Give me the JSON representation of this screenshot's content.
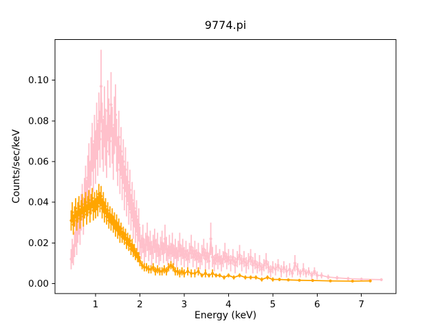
{
  "chart_data": {
    "type": "line",
    "title": "9774.pi",
    "xlabel": "Energy (keV)",
    "ylabel": "Counts/sec/keV",
    "xlim": [
      0.085,
      7.78
    ],
    "ylim": [
      -0.005,
      0.12
    ],
    "xticks": [
      1,
      2,
      3,
      4,
      5,
      6,
      7
    ],
    "xtick_labels": [
      "1",
      "2",
      "3",
      "4",
      "5",
      "6",
      "7"
    ],
    "yticks": [
      0.0,
      0.02,
      0.04,
      0.06,
      0.08,
      0.1
    ],
    "ytick_labels": [
      "0.00",
      "0.02",
      "0.04",
      "0.06",
      "0.08",
      "0.10"
    ],
    "grid": false,
    "legend": "none",
    "background_color": "#ffffff",
    "axes_color": "#000000",
    "series": [
      {
        "name": "spectrum-pink",
        "color": "#ffc0cb",
        "marker": "dot",
        "line": "solid",
        "error_bars": true,
        "x": [
          0.45,
          0.475,
          0.5,
          0.525,
          0.55,
          0.575,
          0.6,
          0.625,
          0.65,
          0.675,
          0.7,
          0.725,
          0.75,
          0.775,
          0.8,
          0.825,
          0.85,
          0.875,
          0.9,
          0.925,
          0.95,
          0.975,
          1.0,
          1.025,
          1.05,
          1.075,
          1.1,
          1.125,
          1.15,
          1.175,
          1.2,
          1.225,
          1.25,
          1.275,
          1.3,
          1.325,
          1.35,
          1.375,
          1.4,
          1.425,
          1.45,
          1.475,
          1.5,
          1.525,
          1.55,
          1.575,
          1.6,
          1.625,
          1.65,
          1.675,
          1.7,
          1.725,
          1.75,
          1.775,
          1.8,
          1.825,
          1.85,
          1.875,
          1.9,
          1.925,
          1.95,
          1.975,
          2.0,
          2.033,
          2.067,
          2.1,
          2.133,
          2.167,
          2.2,
          2.233,
          2.267,
          2.3,
          2.333,
          2.367,
          2.4,
          2.433,
          2.467,
          2.5,
          2.533,
          2.567,
          2.6,
          2.633,
          2.667,
          2.7,
          2.733,
          2.767,
          2.8,
          2.833,
          2.867,
          2.9,
          2.933,
          2.967,
          3.0,
          3.04,
          3.08,
          3.12,
          3.16,
          3.2,
          3.24,
          3.28,
          3.32,
          3.36,
          3.4,
          3.44,
          3.48,
          3.52,
          3.56,
          3.6,
          3.64,
          3.68,
          3.72,
          3.76,
          3.8,
          3.84,
          3.88,
          3.92,
          3.96,
          4.0,
          4.05,
          4.1,
          4.15,
          4.2,
          4.25,
          4.3,
          4.35,
          4.4,
          4.45,
          4.5,
          4.55,
          4.6,
          4.65,
          4.7,
          4.75,
          4.8,
          4.85,
          4.9,
          4.95,
          5.0,
          5.06,
          5.12,
          5.19,
          5.25,
          5.31,
          5.38,
          5.44,
          5.5,
          5.56,
          5.62,
          5.69,
          5.75,
          5.81,
          5.88,
          5.94,
          6.0,
          6.1,
          6.25,
          6.45,
          6.7,
          7.0,
          7.45
        ],
        "y": [
          0.012,
          0.016,
          0.014,
          0.019,
          0.025,
          0.021,
          0.028,
          0.032,
          0.027,
          0.035,
          0.04,
          0.033,
          0.042,
          0.048,
          0.041,
          0.052,
          0.058,
          0.049,
          0.06,
          0.067,
          0.057,
          0.07,
          0.062,
          0.075,
          0.066,
          0.08,
          0.071,
          0.097,
          0.075,
          0.068,
          0.082,
          0.072,
          0.065,
          0.085,
          0.077,
          0.07,
          0.088,
          0.073,
          0.064,
          0.078,
          0.083,
          0.068,
          0.06,
          0.072,
          0.056,
          0.065,
          0.052,
          0.06,
          0.047,
          0.056,
          0.043,
          0.05,
          0.039,
          0.046,
          0.035,
          0.041,
          0.031,
          0.037,
          0.028,
          0.033,
          0.024,
          0.029,
          0.021,
          0.018,
          0.022,
          0.016,
          0.019,
          0.023,
          0.017,
          0.02,
          0.015,
          0.018,
          0.021,
          0.016,
          0.019,
          0.014,
          0.017,
          0.02,
          0.015,
          0.022,
          0.017,
          0.014,
          0.018,
          0.015,
          0.019,
          0.014,
          0.017,
          0.013,
          0.016,
          0.019,
          0.014,
          0.017,
          0.013,
          0.016,
          0.012,
          0.015,
          0.018,
          0.013,
          0.016,
          0.012,
          0.015,
          0.011,
          0.014,
          0.017,
          0.012,
          0.015,
          0.011,
          0.022,
          0.013,
          0.01,
          0.014,
          0.011,
          0.013,
          0.01,
          0.012,
          0.015,
          0.011,
          0.013,
          0.01,
          0.013,
          0.009,
          0.012,
          0.014,
          0.01,
          0.012,
          0.009,
          0.011,
          0.013,
          0.009,
          0.011,
          0.008,
          0.01,
          0.007,
          0.009,
          0.011,
          0.008,
          0.006,
          0.008,
          0.007,
          0.009,
          0.006,
          0.008,
          0.006,
          0.007,
          0.005,
          0.01,
          0.007,
          0.005,
          0.007,
          0.005,
          0.006,
          0.004,
          0.006,
          0.004,
          0.004,
          0.0032,
          0.0028,
          0.0024,
          0.0021,
          0.0019
        ],
        "yerr": [
          0.005,
          0.006,
          0.005,
          0.006,
          0.007,
          0.007,
          0.008,
          0.008,
          0.008,
          0.009,
          0.009,
          0.009,
          0.01,
          0.01,
          0.01,
          0.011,
          0.011,
          0.011,
          0.012,
          0.012,
          0.012,
          0.013,
          0.013,
          0.014,
          0.013,
          0.014,
          0.014,
          0.018,
          0.014,
          0.013,
          0.015,
          0.014,
          0.013,
          0.015,
          0.014,
          0.013,
          0.016,
          0.014,
          0.013,
          0.014,
          0.015,
          0.013,
          0.012,
          0.013,
          0.012,
          0.012,
          0.011,
          0.011,
          0.011,
          0.011,
          0.01,
          0.01,
          0.01,
          0.01,
          0.009,
          0.009,
          0.009,
          0.009,
          0.008,
          0.008,
          0.008,
          0.008,
          0.007,
          0.006,
          0.007,
          0.006,
          0.006,
          0.007,
          0.006,
          0.006,
          0.006,
          0.006,
          0.006,
          0.006,
          0.006,
          0.005,
          0.006,
          0.006,
          0.005,
          0.007,
          0.006,
          0.005,
          0.006,
          0.005,
          0.006,
          0.005,
          0.005,
          0.005,
          0.005,
          0.006,
          0.005,
          0.005,
          0.005,
          0.005,
          0.005,
          0.005,
          0.006,
          0.005,
          0.005,
          0.005,
          0.005,
          0.004,
          0.005,
          0.005,
          0.005,
          0.005,
          0.004,
          0.008,
          0.005,
          0.004,
          0.005,
          0.004,
          0.004,
          0.004,
          0.004,
          0.005,
          0.004,
          0.004,
          0.004,
          0.004,
          0.004,
          0.004,
          0.005,
          0.004,
          0.004,
          0.004,
          0.004,
          0.004,
          0.004,
          0.004,
          0.003,
          0.004,
          0.003,
          0.003,
          0.004,
          0.003,
          0.003,
          0.003,
          0.003,
          0.003,
          0.003,
          0.003,
          0.003,
          0.003,
          0.002,
          0.004,
          0.003,
          0.002,
          0.003,
          0.002,
          0.002,
          0.002,
          0.002,
          0.002,
          0.0015,
          0.0012,
          0.001,
          0.0009,
          0.0008,
          0.0007
        ]
      },
      {
        "name": "spectrum-orange",
        "color": "#ffa500",
        "marker": "dot",
        "line": "solid",
        "error_bars": true,
        "x": [
          0.45,
          0.475,
          0.5,
          0.525,
          0.55,
          0.575,
          0.6,
          0.625,
          0.65,
          0.675,
          0.7,
          0.725,
          0.75,
          0.775,
          0.8,
          0.825,
          0.85,
          0.875,
          0.9,
          0.925,
          0.95,
          0.975,
          1.0,
          1.025,
          1.05,
          1.075,
          1.1,
          1.125,
          1.15,
          1.175,
          1.2,
          1.225,
          1.25,
          1.275,
          1.3,
          1.325,
          1.35,
          1.375,
          1.4,
          1.425,
          1.45,
          1.475,
          1.5,
          1.525,
          1.55,
          1.575,
          1.6,
          1.625,
          1.65,
          1.675,
          1.7,
          1.725,
          1.75,
          1.775,
          1.8,
          1.825,
          1.85,
          1.875,
          1.9,
          1.925,
          1.95,
          1.975,
          2.0,
          2.05,
          2.1,
          2.15,
          2.2,
          2.25,
          2.3,
          2.35,
          2.4,
          2.45,
          2.5,
          2.55,
          2.6,
          2.65,
          2.7,
          2.75,
          2.8,
          2.85,
          2.9,
          2.95,
          3.0,
          3.08,
          3.16,
          3.24,
          3.32,
          3.4,
          3.48,
          3.56,
          3.64,
          3.72,
          3.8,
          3.9,
          4.0,
          4.12,
          4.25,
          4.38,
          4.5,
          4.62,
          4.75,
          4.88,
          5.0,
          5.15,
          5.35,
          5.6,
          5.9,
          6.3,
          6.8,
          7.2
        ],
        "y": [
          0.031,
          0.035,
          0.029,
          0.033,
          0.037,
          0.031,
          0.035,
          0.038,
          0.032,
          0.036,
          0.039,
          0.033,
          0.037,
          0.04,
          0.034,
          0.038,
          0.041,
          0.035,
          0.039,
          0.042,
          0.036,
          0.04,
          0.037,
          0.041,
          0.038,
          0.044,
          0.04,
          0.043,
          0.037,
          0.04,
          0.035,
          0.038,
          0.033,
          0.036,
          0.031,
          0.034,
          0.03,
          0.033,
          0.029,
          0.031,
          0.027,
          0.03,
          0.026,
          0.028,
          0.024,
          0.027,
          0.023,
          0.025,
          0.022,
          0.024,
          0.02,
          0.022,
          0.019,
          0.021,
          0.017,
          0.019,
          0.016,
          0.017,
          0.014,
          0.015,
          0.013,
          0.013,
          0.011,
          0.009,
          0.008,
          0.008,
          0.007,
          0.007,
          0.008,
          0.006,
          0.007,
          0.006,
          0.006,
          0.007,
          0.006,
          0.008,
          0.009,
          0.008,
          0.006,
          0.006,
          0.005,
          0.006,
          0.005,
          0.006,
          0.005,
          0.005,
          0.006,
          0.004,
          0.005,
          0.004,
          0.005,
          0.004,
          0.004,
          0.003,
          0.004,
          0.003,
          0.004,
          0.003,
          0.003,
          0.003,
          0.002,
          0.003,
          0.002,
          0.002,
          0.0018,
          0.0016,
          0.0015,
          0.0013,
          0.0012,
          0.0013
        ],
        "yerr": [
          0.005,
          0.005,
          0.005,
          0.005,
          0.005,
          0.005,
          0.005,
          0.005,
          0.005,
          0.005,
          0.005,
          0.005,
          0.005,
          0.005,
          0.005,
          0.005,
          0.005,
          0.005,
          0.005,
          0.005,
          0.005,
          0.005,
          0.005,
          0.005,
          0.005,
          0.005,
          0.005,
          0.005,
          0.005,
          0.005,
          0.005,
          0.004,
          0.004,
          0.004,
          0.004,
          0.004,
          0.004,
          0.004,
          0.004,
          0.004,
          0.004,
          0.004,
          0.004,
          0.004,
          0.004,
          0.003,
          0.003,
          0.003,
          0.003,
          0.003,
          0.003,
          0.003,
          0.003,
          0.003,
          0.003,
          0.003,
          0.003,
          0.0025,
          0.0025,
          0.0025,
          0.0025,
          0.0025,
          0.0025,
          0.002,
          0.002,
          0.002,
          0.002,
          0.002,
          0.002,
          0.002,
          0.002,
          0.002,
          0.002,
          0.002,
          0.002,
          0.002,
          0.002,
          0.002,
          0.002,
          0.002,
          0.002,
          0.002,
          0.002,
          0.002,
          0.002,
          0.002,
          0.002,
          0.001,
          0.002,
          0.001,
          0.002,
          0.001,
          0.001,
          0.001,
          0.001,
          0.001,
          0.001,
          0.001,
          0.001,
          0.001,
          0.001,
          0.001,
          0.001,
          0.0008,
          0.0007,
          0.0006,
          0.0006,
          0.0005,
          0.0005,
          0.0005
        ]
      }
    ]
  }
}
